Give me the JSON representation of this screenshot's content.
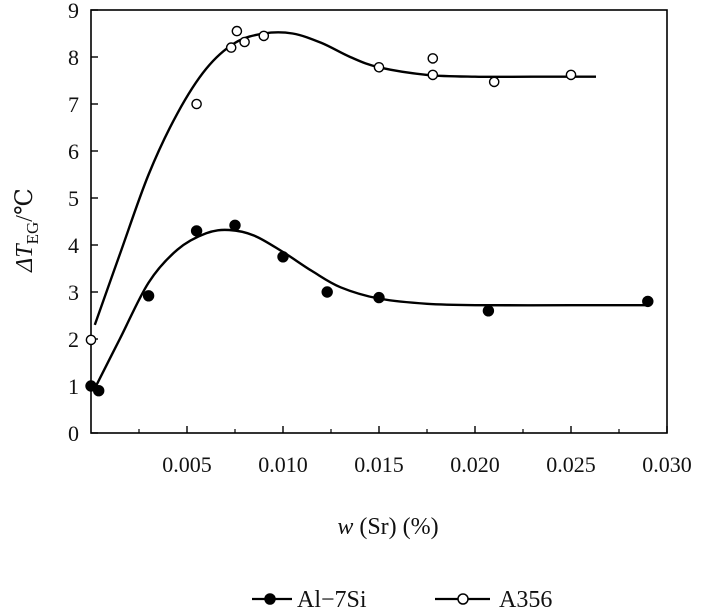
{
  "chart_data": {
    "type": "scatter",
    "title": "",
    "xlabel_prefix": "w",
    "xlabel_suffix": "(Sr) (%)",
    "ylabel_base": "ΔT",
    "ylabel_subscript": "EG",
    "ylabel_unit": "/℃",
    "xlim": [
      0,
      0.03
    ],
    "ylim": [
      0,
      9
    ],
    "x_ticks": [
      0.005,
      0.01,
      0.015,
      0.02,
      0.025,
      0.03
    ],
    "x_tick_labels": [
      "0.005",
      "0.010",
      "0.015",
      "0.020",
      "0.025",
      "0.030"
    ],
    "y_ticks": [
      0,
      1,
      2,
      3,
      4,
      5,
      6,
      7,
      8,
      9
    ],
    "y_tick_labels": [
      "0",
      "1",
      "2",
      "3",
      "4",
      "5",
      "6",
      "7",
      "8",
      "9"
    ],
    "grid": false,
    "legend_position": "bottom-center",
    "series": [
      {
        "name": "Al−7Si",
        "marker": "filled-circle",
        "color": "#000000",
        "points": [
          [
            0.0,
            1.0
          ],
          [
            0.0004,
            0.9
          ],
          [
            0.003,
            2.92
          ],
          [
            0.0055,
            4.3
          ],
          [
            0.0075,
            4.42
          ],
          [
            0.01,
            3.75
          ],
          [
            0.0123,
            3.0
          ],
          [
            0.015,
            2.88
          ],
          [
            0.0207,
            2.6
          ],
          [
            0.029,
            2.8
          ]
        ],
        "fit": [
          [
            0.0002,
            0.95
          ],
          [
            0.0015,
            2.0
          ],
          [
            0.003,
            3.2
          ],
          [
            0.0045,
            3.9
          ],
          [
            0.006,
            4.25
          ],
          [
            0.0072,
            4.32
          ],
          [
            0.0085,
            4.2
          ],
          [
            0.01,
            3.85
          ],
          [
            0.0115,
            3.45
          ],
          [
            0.013,
            3.1
          ],
          [
            0.015,
            2.86
          ],
          [
            0.0175,
            2.75
          ],
          [
            0.02,
            2.72
          ],
          [
            0.025,
            2.72
          ],
          [
            0.029,
            2.72
          ]
        ]
      },
      {
        "name": "A356",
        "marker": "open-circle",
        "color": "#000000",
        "points": [
          [
            0.0,
            1.98
          ],
          [
            0.0055,
            7.0
          ],
          [
            0.0073,
            8.2
          ],
          [
            0.0076,
            8.55
          ],
          [
            0.008,
            8.32
          ],
          [
            0.009,
            8.45
          ],
          [
            0.015,
            7.78
          ],
          [
            0.0178,
            7.97
          ],
          [
            0.0178,
            7.62
          ],
          [
            0.021,
            7.47
          ],
          [
            0.025,
            7.62
          ]
        ],
        "fit": [
          [
            0.0002,
            2.3
          ],
          [
            0.0015,
            3.8
          ],
          [
            0.003,
            5.5
          ],
          [
            0.0045,
            6.8
          ],
          [
            0.006,
            7.75
          ],
          [
            0.0075,
            8.3
          ],
          [
            0.009,
            8.5
          ],
          [
            0.0105,
            8.5
          ],
          [
            0.012,
            8.3
          ],
          [
            0.0135,
            8.0
          ],
          [
            0.015,
            7.78
          ],
          [
            0.0175,
            7.62
          ],
          [
            0.02,
            7.58
          ],
          [
            0.023,
            7.58
          ],
          [
            0.0263,
            7.58
          ]
        ]
      }
    ]
  }
}
